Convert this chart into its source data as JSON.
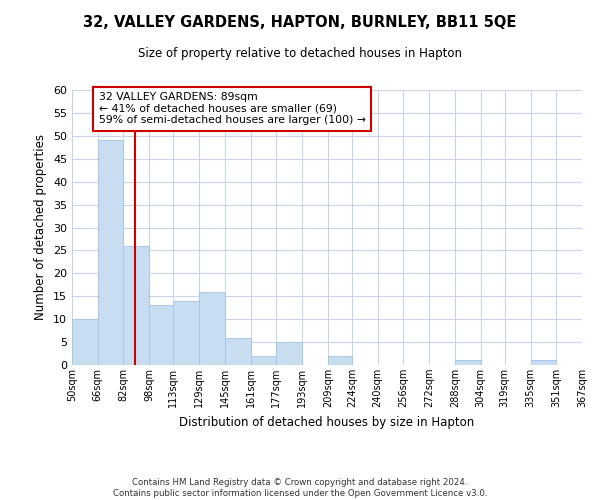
{
  "title": "32, VALLEY GARDENS, HAPTON, BURNLEY, BB11 5QE",
  "subtitle": "Size of property relative to detached houses in Hapton",
  "xlabel": "Distribution of detached houses by size in Hapton",
  "ylabel": "Number of detached properties",
  "bar_color": "#c8ddf0",
  "bar_edge_color": "#a8c8e8",
  "marker_line_color": "#cc0000",
  "marker_value": 89,
  "annotation_title": "32 VALLEY GARDENS: 89sqm",
  "annotation_line1": "← 41% of detached houses are smaller (69)",
  "annotation_line2": "59% of semi-detached houses are larger (100) →",
  "bin_edges": [
    50,
    66,
    82,
    98,
    113,
    129,
    145,
    161,
    177,
    193,
    209,
    224,
    240,
    256,
    272,
    288,
    304,
    319,
    335,
    351,
    367
  ],
  "bin_labels": [
    "50sqm",
    "66sqm",
    "82sqm",
    "98sqm",
    "113sqm",
    "129sqm",
    "145sqm",
    "161sqm",
    "177sqm",
    "193sqm",
    "209sqm",
    "224sqm",
    "240sqm",
    "256sqm",
    "272sqm",
    "288sqm",
    "304sqm",
    "319sqm",
    "335sqm",
    "351sqm",
    "367sqm"
  ],
  "counts": [
    10,
    49,
    26,
    13,
    14,
    16,
    6,
    2,
    5,
    0,
    2,
    0,
    0,
    0,
    0,
    1,
    0,
    0,
    1,
    0
  ],
  "ylim": [
    0,
    60
  ],
  "yticks": [
    0,
    5,
    10,
    15,
    20,
    25,
    30,
    35,
    40,
    45,
    50,
    55,
    60
  ],
  "footer_line1": "Contains HM Land Registry data © Crown copyright and database right 2024.",
  "footer_line2": "Contains public sector information licensed under the Open Government Licence v3.0.",
  "background_color": "#ffffff",
  "grid_color": "#c8d4e8"
}
